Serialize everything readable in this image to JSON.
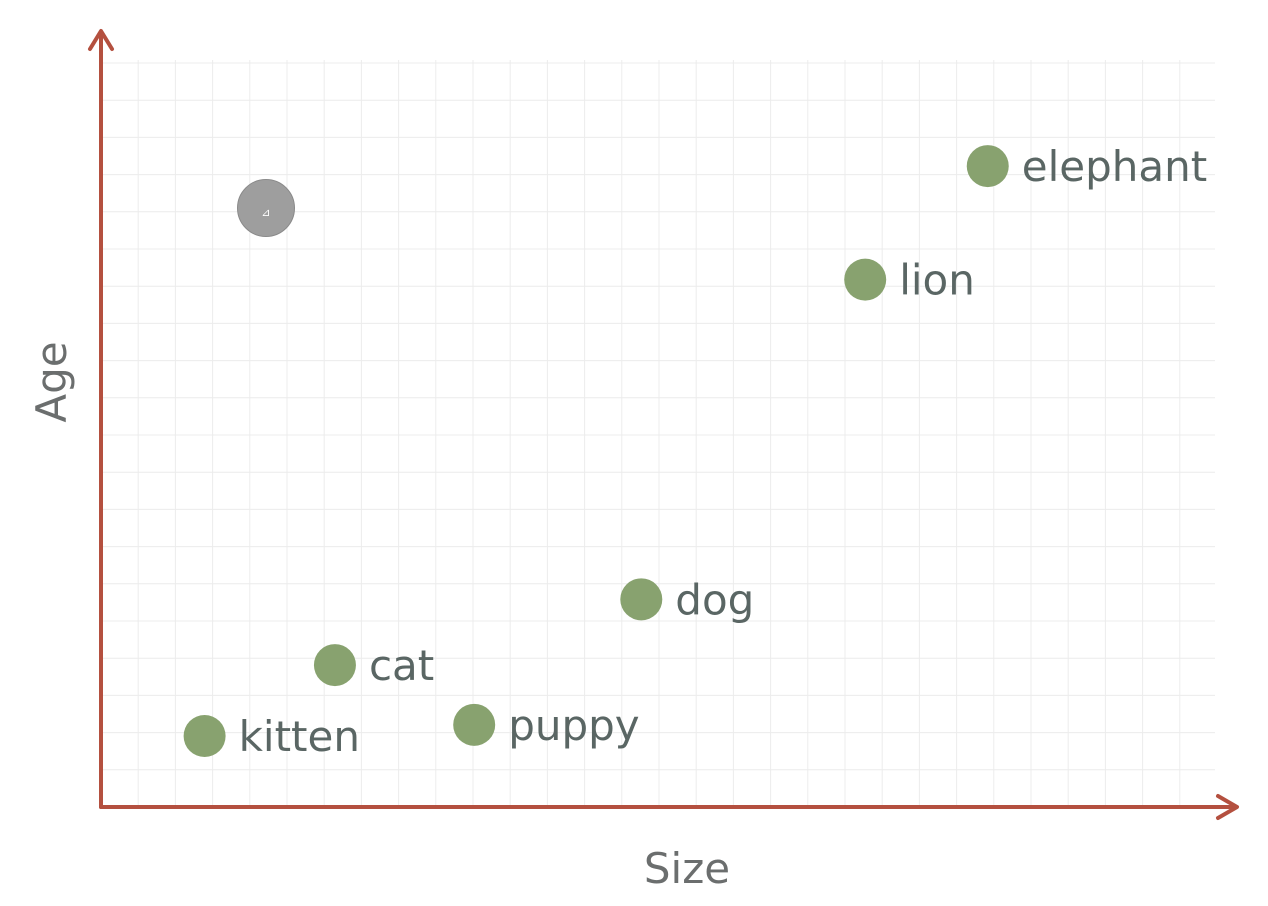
{
  "chart_data": {
    "type": "scatter",
    "xlabel": "Size",
    "ylabel": "Age",
    "xlim": [
      0,
      100
    ],
    "ylim": [
      0,
      100
    ],
    "grid": true,
    "colors": {
      "point": "#88a26f",
      "axis": "#b4503f",
      "grid": "#ececec",
      "label": "#5a6664"
    },
    "points": [
      {
        "label": "kitten",
        "x": 9.3,
        "y": 9.5
      },
      {
        "label": "cat",
        "x": 21.0,
        "y": 19.0
      },
      {
        "label": "puppy",
        "x": 33.5,
        "y": 11.0
      },
      {
        "label": "dog",
        "x": 48.5,
        "y": 27.8
      },
      {
        "label": "lion",
        "x": 68.6,
        "y": 70.6
      },
      {
        "label": "elephant",
        "x": 79.6,
        "y": 85.8
      }
    ]
  },
  "overlay": {
    "cursor_icon": "share-icon",
    "cursor_glyph": "⊿"
  }
}
